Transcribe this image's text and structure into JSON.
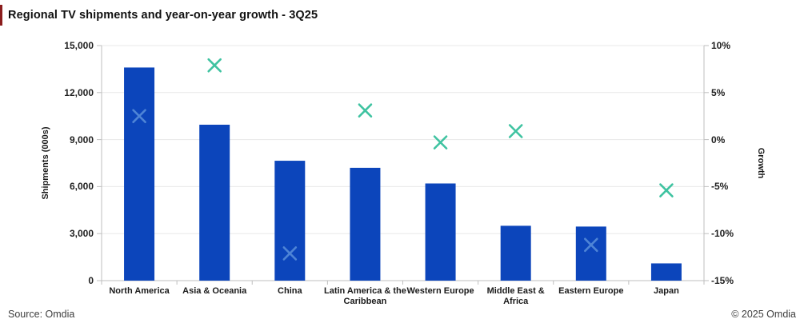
{
  "chart_data": {
    "type": "bar",
    "title": "Regional TV shipments and year-on-year growth - 3Q25",
    "ylabel_left": "Shipments (000s)",
    "ylabel_right": "Growth",
    "legend": "none",
    "grid": true,
    "categories": [
      "North America",
      "Asia & Oceania",
      "China",
      "Latin America & the Caribbean",
      "Western Europe",
      "Middle East & Africa",
      "Eastern Europe",
      "Japan"
    ],
    "category_label_lines": [
      [
        "North America"
      ],
      [
        "Asia & Oceania"
      ],
      [
        "China"
      ],
      [
        "Latin America & the",
        "Caribbean"
      ],
      [
        "Western Europe"
      ],
      [
        "Middle East &",
        "Africa"
      ],
      [
        "Eastern Europe"
      ],
      [
        "Japan"
      ]
    ],
    "series": [
      {
        "name": "Shipments (000s)",
        "type": "bar",
        "values": [
          13600,
          9950,
          7650,
          7200,
          6200,
          3500,
          3450,
          1100
        ],
        "color": "#0c45bb"
      },
      {
        "name": "Year-on-year growth",
        "type": "scatter",
        "marker": "x",
        "values": [
          2.5,
          7.9,
          -12.1,
          3.1,
          -0.3,
          0.9,
          -11.2,
          -5.4
        ],
        "color": "#3fc3a1",
        "point_colors": [
          "#4e84d6",
          "#3fc3a1",
          "#4e84d6",
          "#3fc3a1",
          "#3fc3a1",
          "#3fc3a1",
          "#4e84d6",
          "#3fc3a1"
        ]
      }
    ],
    "left_axis": {
      "min": 0,
      "max": 15000,
      "ticks": [
        {
          "value": 15000,
          "label": "15,000"
        },
        {
          "value": 12000,
          "label": "12,000"
        },
        {
          "value": 9000,
          "label": "9,000"
        },
        {
          "value": 6000,
          "label": "6,000"
        },
        {
          "value": 3000,
          "label": "3,000"
        },
        {
          "value": 0,
          "label": "0"
        }
      ]
    },
    "right_axis": {
      "min": -15,
      "max": 10,
      "ticks": [
        {
          "value": 10,
          "label": "10%"
        },
        {
          "value": 5,
          "label": "5%"
        },
        {
          "value": 0,
          "label": "0%"
        },
        {
          "value": -5,
          "label": "-5%"
        },
        {
          "value": -10,
          "label": "-10%"
        },
        {
          "value": -15,
          "label": "-15%"
        }
      ]
    },
    "colors": {
      "bar": "#0c45bb",
      "marker": "#3fc3a1",
      "marker_on_bar": "#4e84d6",
      "gridline": "#e8e8e8",
      "axis": "#bfbfbf",
      "accent": "#8b1d1d"
    }
  },
  "footer": {
    "source": "Source: Omdia",
    "copyright": "© 2025 Omdia"
  }
}
